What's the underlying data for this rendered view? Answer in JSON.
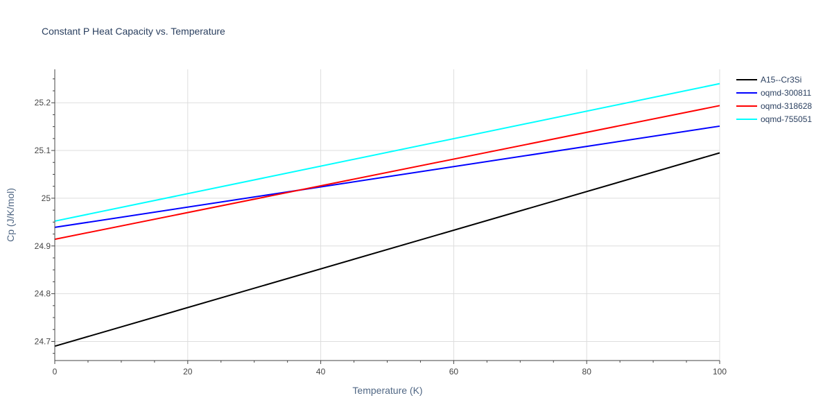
{
  "chart_data": {
    "type": "line",
    "title": "Constant P Heat Capacity vs. Temperature",
    "xlabel": "Temperature (K)",
    "ylabel": "Cp (J/K/mol)",
    "xlim": [
      0,
      100
    ],
    "ylim": [
      24.66,
      25.27
    ],
    "x_ticks": [
      0,
      20,
      40,
      60,
      80,
      100
    ],
    "y_ticks": [
      24.7,
      24.8,
      24.9,
      25,
      25.1,
      25.2
    ],
    "y_tick_labels": [
      "24.7",
      "24.8",
      "24.9",
      "25",
      "25.1",
      "25.2"
    ],
    "grid": true,
    "legend_position": "right",
    "x": [
      0,
      100
    ],
    "series": [
      {
        "name": "A15--Cr3Si",
        "color": "#000000",
        "values": [
          24.69,
          25.095
        ]
      },
      {
        "name": "oqmd-300811",
        "color": "#0000ff",
        "values": [
          24.939,
          25.151
        ]
      },
      {
        "name": "oqmd-318628",
        "color": "#ff0000",
        "values": [
          24.914,
          25.194
        ]
      },
      {
        "name": "oqmd-755051",
        "color": "#00ffff",
        "values": [
          24.952,
          25.24
        ]
      }
    ]
  }
}
